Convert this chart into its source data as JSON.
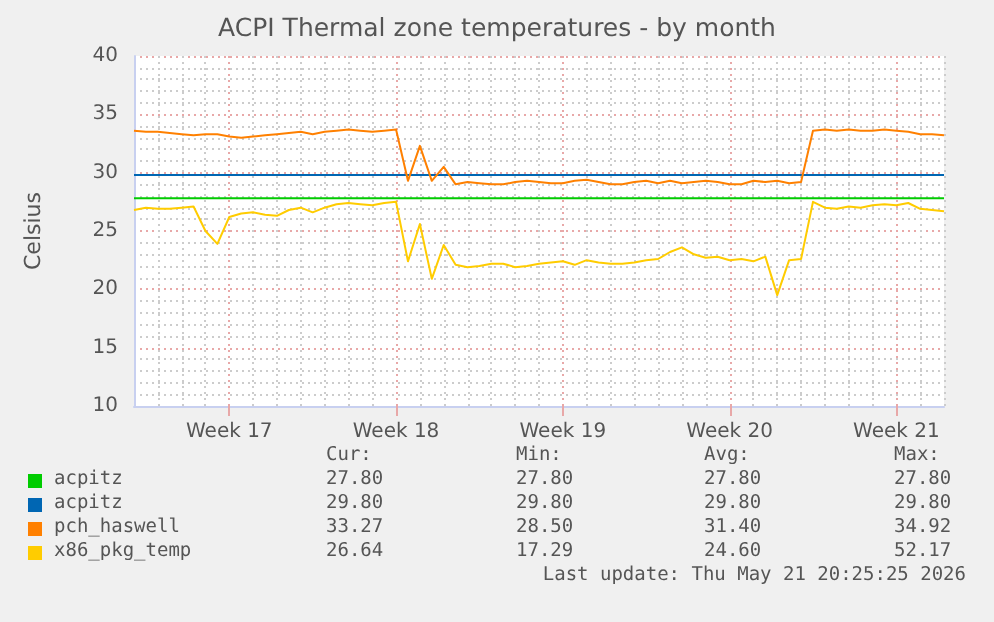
{
  "chart_data": {
    "type": "line",
    "title": "ACPI Thermal zone temperatures - by month",
    "ylabel": "Celsius",
    "categories": [
      null,
      null,
      null,
      null,
      null,
      null,
      null,
      null,
      "Week 17",
      null,
      null,
      null,
      null,
      null,
      null,
      null,
      null,
      null,
      null,
      null,
      null,
      null,
      "Week 18",
      null,
      null,
      null,
      null,
      null,
      null,
      null,
      null,
      null,
      null,
      null,
      null,
      null,
      "Week 19",
      null,
      null,
      null,
      null,
      null,
      null,
      null,
      null,
      null,
      null,
      null,
      null,
      null,
      "Week 20",
      null,
      null,
      null,
      null,
      null,
      null,
      null,
      null,
      null,
      null,
      null,
      null,
      null,
      "Week 21",
      null,
      null,
      null,
      null
    ],
    "series": [
      {
        "name": "acpitz",
        "color": "#00cc00",
        "values": [
          27.8,
          27.8,
          27.8,
          27.8,
          27.8,
          27.8,
          27.8,
          27.8,
          27.8,
          27.8,
          27.8,
          27.8,
          27.8,
          27.8,
          27.8,
          27.8,
          27.8,
          27.8,
          27.8,
          27.8,
          27.8,
          27.8,
          27.8,
          27.8,
          27.8,
          27.8,
          27.8,
          27.8,
          27.8,
          27.8,
          27.8,
          27.8,
          27.8,
          27.8,
          27.8,
          27.8,
          27.8,
          27.8,
          27.8,
          27.8,
          27.8,
          27.8,
          27.8,
          27.8,
          27.8,
          27.8,
          27.8,
          27.8,
          27.8,
          27.8,
          27.8,
          27.8,
          27.8,
          27.8,
          27.8,
          27.8,
          27.8,
          27.8,
          27.8,
          27.8,
          27.8,
          27.8,
          27.8,
          27.8,
          27.8,
          27.8,
          27.8,
          27.8,
          27.8
        ]
      },
      {
        "name": "acpitz",
        "color": "#0066b3",
        "values": [
          29.8,
          29.8,
          29.8,
          29.8,
          29.8,
          29.8,
          29.8,
          29.8,
          29.8,
          29.8,
          29.8,
          29.8,
          29.8,
          29.8,
          29.8,
          29.8,
          29.8,
          29.8,
          29.8,
          29.8,
          29.8,
          29.8,
          29.8,
          29.8,
          29.8,
          29.8,
          29.8,
          29.8,
          29.8,
          29.8,
          29.8,
          29.8,
          29.8,
          29.8,
          29.8,
          29.8,
          29.8,
          29.8,
          29.8,
          29.8,
          29.8,
          29.8,
          29.8,
          29.8,
          29.8,
          29.8,
          29.8,
          29.8,
          29.8,
          29.8,
          29.8,
          29.8,
          29.8,
          29.8,
          29.8,
          29.8,
          29.8,
          29.8,
          29.8,
          29.8,
          29.8,
          29.8,
          29.8,
          29.8,
          29.8,
          29.8,
          29.8,
          29.8,
          29.8
        ]
      },
      {
        "name": "pch_haswell",
        "color": "#ff8000",
        "values": [
          33.6,
          33.5,
          33.5,
          33.4,
          33.3,
          33.2,
          33.3,
          33.3,
          33.1,
          33.0,
          33.1,
          33.2,
          33.3,
          33.4,
          33.5,
          33.3,
          33.5,
          33.6,
          33.7,
          33.6,
          33.5,
          33.6,
          33.7,
          29.3,
          32.3,
          29.3,
          30.5,
          29.0,
          29.2,
          29.1,
          29.0,
          29.0,
          29.2,
          29.3,
          29.2,
          29.1,
          29.1,
          29.3,
          29.4,
          29.2,
          29.0,
          29.0,
          29.2,
          29.3,
          29.1,
          29.3,
          29.1,
          29.2,
          29.3,
          29.2,
          29.0,
          29.0,
          29.3,
          29.2,
          29.3,
          29.1,
          29.2,
          33.6,
          33.7,
          33.6,
          33.7,
          33.6,
          33.6,
          33.7,
          33.6,
          33.5,
          33.3,
          33.3,
          33.2
        ]
      },
      {
        "name": "x86_pkg_temp",
        "color": "#ffcc00",
        "values": [
          26.8,
          27.0,
          26.9,
          26.9,
          27.0,
          27.1,
          25.0,
          23.9,
          26.2,
          26.5,
          26.6,
          26.4,
          26.3,
          26.8,
          27.0,
          26.6,
          27.0,
          27.3,
          27.4,
          27.3,
          27.2,
          27.4,
          27.5,
          22.4,
          25.6,
          20.9,
          23.8,
          22.1,
          21.9,
          22.0,
          22.2,
          22.2,
          21.9,
          22.0,
          22.2,
          22.3,
          22.4,
          22.1,
          22.5,
          22.3,
          22.2,
          22.2,
          22.3,
          22.5,
          22.6,
          23.2,
          23.6,
          23.0,
          22.7,
          22.8,
          22.5,
          22.6,
          22.4,
          22.8,
          19.5,
          22.5,
          22.6,
          27.5,
          27.0,
          26.9,
          27.1,
          27.0,
          27.2,
          27.3,
          27.2,
          27.4,
          26.9,
          26.8,
          26.7
        ]
      }
    ],
    "ylim": [
      10,
      40
    ],
    "yticks": [
      10,
      15,
      20,
      25,
      30,
      35,
      40
    ],
    "grid": true,
    "legend": "bottom",
    "marker": "none",
    "line_style": "solid",
    "annotations": [
      "Cur:",
      "Min:",
      "Avg:",
      "Max:",
      "27.80",
      "27.80",
      "27.80",
      "27.80",
      "29.80",
      "29.80",
      "29.80",
      "29.80",
      "33.27",
      "28.50",
      "31.40",
      "34.92",
      "26.64",
      "17.29",
      "24.60",
      "52.17",
      "Last update: Thu May 21 20:25:25 2026"
    ]
  }
}
